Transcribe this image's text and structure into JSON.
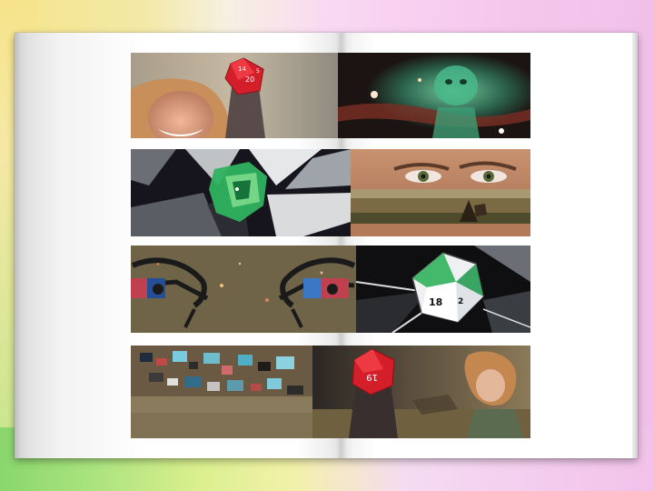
{
  "page": {
    "page_number_text": "",
    "colors": {
      "background_yellow": "#f4e58a",
      "background_pink": "#f6c8ee",
      "background_green": "#86d66b",
      "paper": "#ffffff"
    }
  },
  "strips": [
    {
      "panels": [
        {
          "subject": "woman-smiling-with-red-d20-die",
          "die_text": "14 20 5"
        },
        {
          "subject": "green-creature-dark-background"
        }
      ]
    },
    {
      "panels": [
        {
          "subject": "green-glitch-over-broken-gray-shards"
        },
        {
          "subject": "man-eyes-closeup-with-landscape-band"
        }
      ]
    },
    {
      "panels": [
        {
          "subject": "stylized-eyes-with-glasses-on-olive"
        },
        {
          "subject": "green-and-white-d20-die",
          "die_text": "18 2"
        }
      ]
    },
    {
      "panels": [
        {
          "subject": "pixel-glitch-landscape"
        },
        {
          "subject": "red-d20-with-young-man-on-battlefield",
          "die_text": "19"
        }
      ]
    }
  ]
}
